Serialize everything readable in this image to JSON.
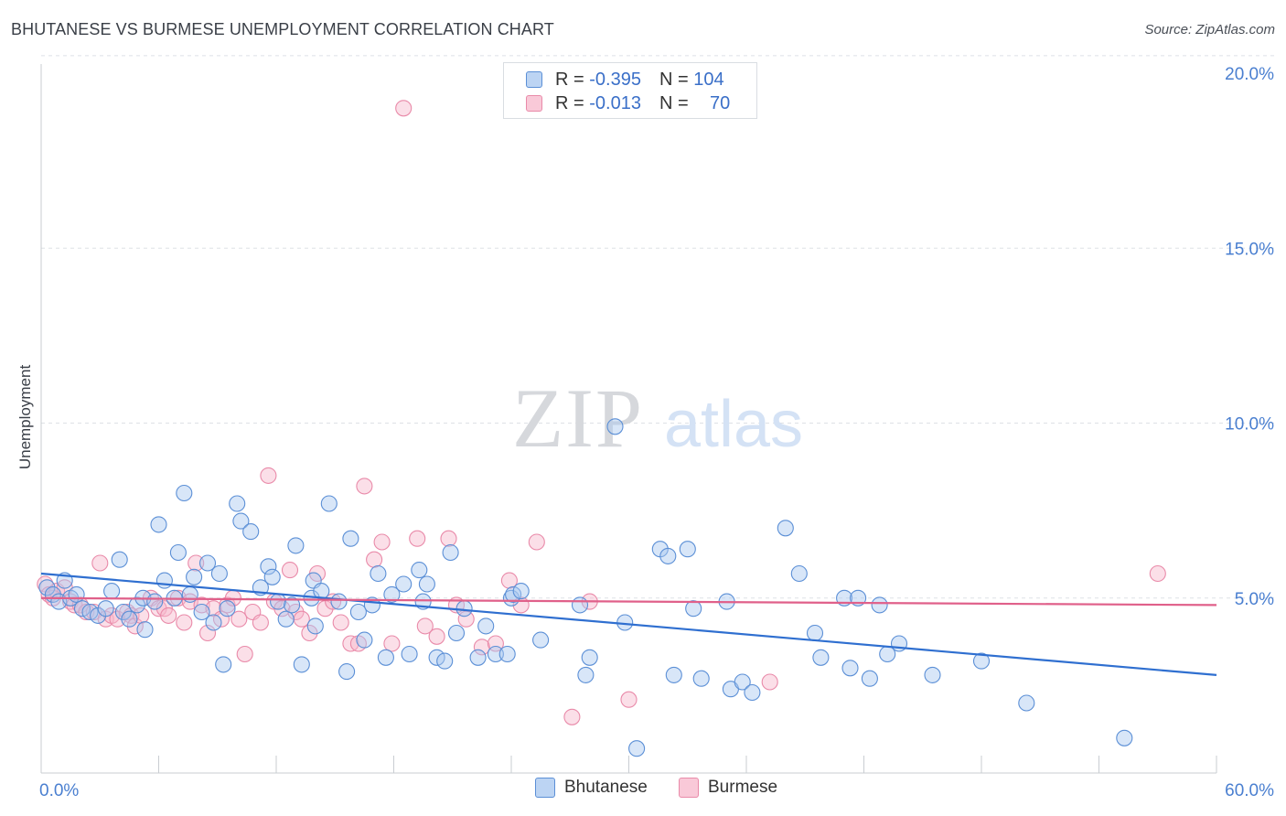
{
  "header": {
    "title": "BHUTANESE VS BURMESE UNEMPLOYMENT CORRELATION CHART",
    "source": "Source: ZipAtlas.com"
  },
  "watermark": {
    "zip": "ZIP",
    "atlas": "atlas"
  },
  "colors": {
    "blue_fill": "#a9c8f0",
    "blue_stroke": "#5b8fd6",
    "blue_line": "#2f6fd0",
    "pink_fill": "#f7b8cc",
    "pink_stroke": "#e98aa9",
    "pink_line": "#e0608a",
    "tick_label": "#4a7fd0",
    "grid": "#dde1e6"
  },
  "legend": {
    "rows": [
      {
        "r_label": "R =",
        "r_value": "-0.395",
        "n_label": "N =",
        "n_value": "104",
        "swatch": "blue"
      },
      {
        "r_label": "R =",
        "r_value": "-0.013",
        "n_label": "N =",
        "n_value": "70",
        "swatch": "pink"
      }
    ]
  },
  "chart_data": {
    "type": "scatter",
    "title": "BHUTANESE VS BURMESE UNEMPLOYMENT CORRELATION CHART",
    "xlabel": "",
    "ylabel": "Unemployment",
    "xlim": [
      0,
      60
    ],
    "ylim": [
      0,
      20.5
    ],
    "x_tick_labels": [
      "0.0%",
      "60.0%"
    ],
    "y_ticks": [
      5,
      10,
      15,
      20
    ],
    "y_tick_labels": [
      "5.0%",
      "10.0%",
      "15.0%",
      "20.0%"
    ],
    "grid": "horizontal dashed",
    "legend_position": "bottom",
    "series": [
      {
        "name": "Bhutanese",
        "color": "blue",
        "trend": {
          "x0": 0,
          "y0": 5.7,
          "x1": 60,
          "y1": 2.8
        },
        "points": [
          [
            0.3,
            5.3
          ],
          [
            0.6,
            5.1
          ],
          [
            0.9,
            4.9
          ],
          [
            1.2,
            5.5
          ],
          [
            1.5,
            5.0
          ],
          [
            1.8,
            5.1
          ],
          [
            2.1,
            4.7
          ],
          [
            2.5,
            4.6
          ],
          [
            2.9,
            4.5
          ],
          [
            3.3,
            4.7
          ],
          [
            3.6,
            5.2
          ],
          [
            4.0,
            6.1
          ],
          [
            4.2,
            4.6
          ],
          [
            4.5,
            4.4
          ],
          [
            4.9,
            4.8
          ],
          [
            5.2,
            5.0
          ],
          [
            5.3,
            4.1
          ],
          [
            5.8,
            4.9
          ],
          [
            6.0,
            7.1
          ],
          [
            6.3,
            5.5
          ],
          [
            6.8,
            5.0
          ],
          [
            7.0,
            6.3
          ],
          [
            7.3,
            8.0
          ],
          [
            7.6,
            5.1
          ],
          [
            7.8,
            5.6
          ],
          [
            8.2,
            4.6
          ],
          [
            8.5,
            6.0
          ],
          [
            8.8,
            4.3
          ],
          [
            9.1,
            5.7
          ],
          [
            9.3,
            3.1
          ],
          [
            9.5,
            4.7
          ],
          [
            10.0,
            7.7
          ],
          [
            10.2,
            7.2
          ],
          [
            10.7,
            6.9
          ],
          [
            11.2,
            5.3
          ],
          [
            11.6,
            5.9
          ],
          [
            11.8,
            5.6
          ],
          [
            12.1,
            4.9
          ],
          [
            12.5,
            4.4
          ],
          [
            12.8,
            4.8
          ],
          [
            13.0,
            6.5
          ],
          [
            13.3,
            3.1
          ],
          [
            13.8,
            5.0
          ],
          [
            13.9,
            5.5
          ],
          [
            14.0,
            4.2
          ],
          [
            14.3,
            5.2
          ],
          [
            14.7,
            7.7
          ],
          [
            15.2,
            4.9
          ],
          [
            15.6,
            2.9
          ],
          [
            15.8,
            6.7
          ],
          [
            16.2,
            4.6
          ],
          [
            16.5,
            3.8
          ],
          [
            16.9,
            4.8
          ],
          [
            17.2,
            5.7
          ],
          [
            17.6,
            3.3
          ],
          [
            17.9,
            5.1
          ],
          [
            18.5,
            5.4
          ],
          [
            18.8,
            3.4
          ],
          [
            19.3,
            5.8
          ],
          [
            19.5,
            4.9
          ],
          [
            19.7,
            5.4
          ],
          [
            20.2,
            3.3
          ],
          [
            20.6,
            3.2
          ],
          [
            20.9,
            6.3
          ],
          [
            21.2,
            4.0
          ],
          [
            21.6,
            4.7
          ],
          [
            22.3,
            3.3
          ],
          [
            22.7,
            4.2
          ],
          [
            23.2,
            3.4
          ],
          [
            23.8,
            3.4
          ],
          [
            24.0,
            5.0
          ],
          [
            24.1,
            5.1
          ],
          [
            24.5,
            5.2
          ],
          [
            25.5,
            3.8
          ],
          [
            27.5,
            4.8
          ],
          [
            27.8,
            2.8
          ],
          [
            28.0,
            3.3
          ],
          [
            29.3,
            9.9
          ],
          [
            29.8,
            4.3
          ],
          [
            30.4,
            0.7
          ],
          [
            31.6,
            6.4
          ],
          [
            32.0,
            6.2
          ],
          [
            32.3,
            2.8
          ],
          [
            33.0,
            6.4
          ],
          [
            33.3,
            4.7
          ],
          [
            33.7,
            2.7
          ],
          [
            35.0,
            4.9
          ],
          [
            35.2,
            2.4
          ],
          [
            35.8,
            2.6
          ],
          [
            36.3,
            2.3
          ],
          [
            38.0,
            7.0
          ],
          [
            38.7,
            5.7
          ],
          [
            39.5,
            4.0
          ],
          [
            39.8,
            3.3
          ],
          [
            41.0,
            5.0
          ],
          [
            41.3,
            3.0
          ],
          [
            41.7,
            5.0
          ],
          [
            42.3,
            2.7
          ],
          [
            42.8,
            4.8
          ],
          [
            43.2,
            3.4
          ],
          [
            43.8,
            3.7
          ],
          [
            45.5,
            2.8
          ],
          [
            48.0,
            3.2
          ],
          [
            50.3,
            2.0
          ],
          [
            55.3,
            1.0
          ]
        ]
      },
      {
        "name": "Burmese",
        "color": "pink",
        "trend": {
          "x0": 0,
          "y0": 5.0,
          "x1": 60,
          "y1": 4.8
        },
        "points": [
          [
            0.2,
            5.4
          ],
          [
            0.4,
            5.1
          ],
          [
            0.6,
            5.0
          ],
          [
            0.8,
            5.2
          ],
          [
            1.2,
            5.3
          ],
          [
            1.5,
            4.9
          ],
          [
            1.7,
            4.8
          ],
          [
            2.0,
            4.8
          ],
          [
            2.3,
            4.6
          ],
          [
            2.7,
            4.6
          ],
          [
            3.0,
            6.0
          ],
          [
            3.3,
            4.4
          ],
          [
            3.6,
            4.5
          ],
          [
            3.9,
            4.4
          ],
          [
            4.4,
            4.6
          ],
          [
            4.6,
            4.5
          ],
          [
            4.8,
            4.2
          ],
          [
            5.1,
            4.5
          ],
          [
            5.6,
            5.0
          ],
          [
            6.0,
            4.7
          ],
          [
            6.3,
            4.7
          ],
          [
            6.5,
            4.5
          ],
          [
            7.0,
            5.0
          ],
          [
            7.3,
            4.3
          ],
          [
            7.6,
            4.9
          ],
          [
            7.9,
            6.0
          ],
          [
            8.2,
            4.8
          ],
          [
            8.5,
            4.0
          ],
          [
            8.8,
            4.7
          ],
          [
            9.2,
            4.4
          ],
          [
            9.5,
            4.8
          ],
          [
            9.8,
            5.0
          ],
          [
            10.1,
            4.4
          ],
          [
            10.4,
            3.4
          ],
          [
            10.8,
            4.6
          ],
          [
            11.2,
            4.3
          ],
          [
            11.6,
            8.5
          ],
          [
            11.9,
            4.9
          ],
          [
            12.3,
            4.7
          ],
          [
            12.7,
            5.8
          ],
          [
            13.0,
            4.6
          ],
          [
            13.3,
            4.4
          ],
          [
            13.7,
            4.0
          ],
          [
            14.1,
            5.7
          ],
          [
            14.5,
            4.7
          ],
          [
            14.9,
            4.9
          ],
          [
            15.3,
            4.3
          ],
          [
            15.8,
            3.7
          ],
          [
            16.2,
            3.7
          ],
          [
            16.5,
            8.2
          ],
          [
            17.0,
            6.1
          ],
          [
            17.4,
            6.6
          ],
          [
            17.9,
            3.7
          ],
          [
            18.5,
            19.0
          ],
          [
            19.2,
            6.7
          ],
          [
            19.6,
            4.2
          ],
          [
            20.2,
            3.9
          ],
          [
            20.8,
            6.7
          ],
          [
            21.2,
            4.8
          ],
          [
            21.7,
            4.4
          ],
          [
            22.5,
            3.6
          ],
          [
            23.2,
            3.7
          ],
          [
            23.9,
            5.5
          ],
          [
            24.5,
            4.8
          ],
          [
            25.3,
            6.6
          ],
          [
            27.1,
            1.6
          ],
          [
            28.0,
            4.9
          ],
          [
            30.0,
            2.1
          ],
          [
            37.2,
            2.6
          ],
          [
            57.0,
            5.7
          ]
        ]
      }
    ]
  },
  "bottom_legend": [
    {
      "label": "Bhutanese",
      "swatch": "blue"
    },
    {
      "label": "Burmese",
      "swatch": "pink"
    }
  ]
}
